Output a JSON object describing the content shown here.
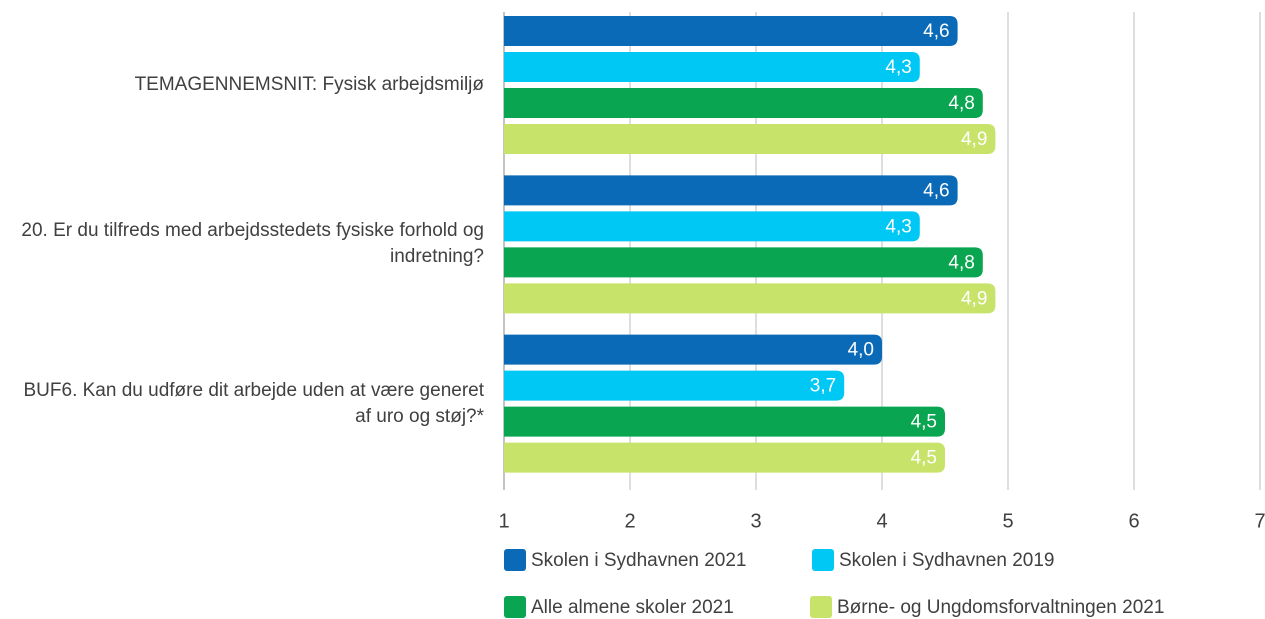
{
  "chart_data": {
    "type": "bar",
    "orientation": "horizontal",
    "categories": [
      "TEMAGENNEMSNIT: Fysisk arbejdsmiljø",
      "20. Er du tilfreds med arbejdsstedets fysiske forhold og indretning?",
      "BUF6. Kan du udføre dit arbejde uden at være generet af uro og støj?*"
    ],
    "series": [
      {
        "name": "Skolen i Sydhavnen 2021",
        "color": "#0a6ab8",
        "values": [
          4.6,
          4.6,
          4.0
        ],
        "value_labels": [
          "4,6",
          "4,6",
          "4,0"
        ]
      },
      {
        "name": "Skolen i Sydhavnen 2019",
        "color": "#00c8f5",
        "values": [
          4.3,
          4.3,
          3.7
        ],
        "value_labels": [
          "4,3",
          "4,3",
          "3,7"
        ]
      },
      {
        "name": "Alle almene skoler 2021",
        "color": "#0aa550",
        "values": [
          4.8,
          4.8,
          4.5
        ],
        "value_labels": [
          "4,8",
          "4,8",
          "4,5"
        ]
      },
      {
        "name": "Børne- og Ungdomsforvaltningen 2021",
        "color": "#c8e36a",
        "values": [
          4.9,
          4.9,
          4.5
        ],
        "value_labels": [
          "4,9",
          "4,9",
          "4,5"
        ]
      }
    ],
    "xlim": [
      1,
      7
    ],
    "xticks": [
      1,
      2,
      3,
      4,
      5,
      6,
      7
    ],
    "grid": true,
    "legend": "bottom"
  }
}
